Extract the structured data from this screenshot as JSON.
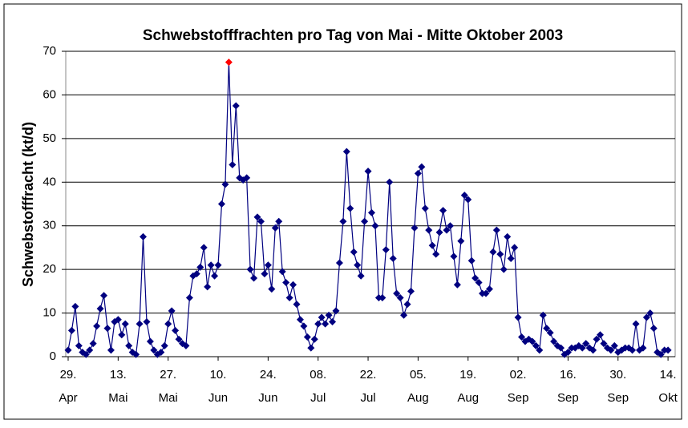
{
  "chart_data": {
    "type": "line",
    "title": "Schwebstofffrachten pro Tag von Mai - Mitte Oktober 2003",
    "y_label": "Schwebstofffracht (kt/d)",
    "color": "#000080",
    "max_marker_color": "#ff0000",
    "grid": true,
    "ylim": [
      0,
      70
    ],
    "yticks": [
      0,
      10,
      20,
      30,
      40,
      50,
      60,
      70
    ],
    "xlim": [
      "04-29",
      "10-16"
    ],
    "xticks": [
      {
        "value": "04-29",
        "label": "29. Apr"
      },
      {
        "value": "05-13",
        "label": "13. Mai"
      },
      {
        "value": "05-27",
        "label": "27. Mai"
      },
      {
        "value": "06-10",
        "label": "10. Jun"
      },
      {
        "value": "06-24",
        "label": "24. Jun"
      },
      {
        "value": "07-08",
        "label": "08. Jul"
      },
      {
        "value": "07-22",
        "label": "22. Jul"
      },
      {
        "value": "08-05",
        "label": "05. Aug"
      },
      {
        "value": "08-19",
        "label": "19. Aug"
      },
      {
        "value": "09-02",
        "label": "02. Sep"
      },
      {
        "value": "09-16",
        "label": "16. Sep"
      },
      {
        "value": "09-30",
        "label": "30. Sep"
      },
      {
        "value": "10-14",
        "label": "14. Okt"
      }
    ],
    "x": [
      "04-29",
      "04-30",
      "05-01",
      "05-02",
      "05-03",
      "05-04",
      "05-05",
      "05-06",
      "05-07",
      "05-08",
      "05-09",
      "05-10",
      "05-11",
      "05-12",
      "05-13",
      "05-14",
      "05-15",
      "05-16",
      "05-17",
      "05-18",
      "05-19",
      "05-20",
      "05-21",
      "05-22",
      "05-23",
      "05-24",
      "05-25",
      "05-26",
      "05-27",
      "05-28",
      "05-29",
      "05-30",
      "05-31",
      "06-01",
      "06-02",
      "06-03",
      "06-04",
      "06-05",
      "06-06",
      "06-07",
      "06-08",
      "06-09",
      "06-10",
      "06-11",
      "06-12",
      "06-13",
      "06-14",
      "06-15",
      "06-16",
      "06-17",
      "06-18",
      "06-19",
      "06-20",
      "06-21",
      "06-22",
      "06-23",
      "06-24",
      "06-25",
      "06-26",
      "06-27",
      "06-28",
      "06-29",
      "06-30",
      "07-01",
      "07-02",
      "07-03",
      "07-04",
      "07-05",
      "07-06",
      "07-07",
      "07-08",
      "07-09",
      "07-10",
      "07-11",
      "07-12",
      "07-13",
      "07-14",
      "07-15",
      "07-16",
      "07-17",
      "07-18",
      "07-19",
      "07-20",
      "07-21",
      "07-22",
      "07-23",
      "07-24",
      "07-25",
      "07-26",
      "07-27",
      "07-28",
      "07-29",
      "07-30",
      "07-31",
      "08-01",
      "08-02",
      "08-03",
      "08-04",
      "08-05",
      "08-06",
      "08-07",
      "08-08",
      "08-09",
      "08-10",
      "08-11",
      "08-12",
      "08-13",
      "08-14",
      "08-15",
      "08-16",
      "08-17",
      "08-18",
      "08-19",
      "08-20",
      "08-21",
      "08-22",
      "08-23",
      "08-24",
      "08-25",
      "08-26",
      "08-27",
      "08-28",
      "08-29",
      "08-30",
      "08-31",
      "09-01",
      "09-02",
      "09-03",
      "09-04",
      "09-05",
      "09-06",
      "09-07",
      "09-08",
      "09-09",
      "09-10",
      "09-11",
      "09-12",
      "09-13",
      "09-14",
      "09-15",
      "09-16",
      "09-17",
      "09-18",
      "09-19",
      "09-20",
      "09-21",
      "09-22",
      "09-23",
      "09-24",
      "09-25",
      "09-26",
      "09-27",
      "09-28",
      "09-29",
      "09-30",
      "10-01",
      "10-02",
      "10-03",
      "10-04",
      "10-05",
      "10-06",
      "10-07",
      "10-08",
      "10-09",
      "10-10",
      "10-11",
      "10-12",
      "10-13",
      "10-14"
    ],
    "values": [
      1.5,
      6,
      11.5,
      2.5,
      1,
      0.5,
      1.5,
      3,
      7,
      11,
      14,
      6.5,
      1.5,
      8,
      8.5,
      5,
      7.5,
      2.5,
      1,
      0.5,
      7.5,
      27.5,
      8,
      3.5,
      1.5,
      0.5,
      1,
      2.5,
      7.5,
      10.5,
      6,
      4,
      3,
      2.5,
      13.5,
      18.5,
      19,
      20.5,
      25,
      16,
      21,
      18.5,
      21,
      35,
      39.5,
      67.5,
      44,
      57.5,
      41,
      40.5,
      41,
      20,
      18,
      32,
      31,
      19,
      21,
      15.5,
      29.5,
      31,
      19.5,
      17,
      13.5,
      16.5,
      12,
      8.5,
      7,
      4.5,
      2,
      4,
      7.5,
      9,
      7.5,
      9.5,
      8,
      10.5,
      21.5,
      31,
      47,
      34,
      24,
      21,
      18.5,
      31,
      42.5,
      33,
      30,
      13.5,
      13.5,
      24.5,
      40,
      22.5,
      14.5,
      13.5,
      9.5,
      12,
      15,
      29.5,
      42,
      43.5,
      34,
      29,
      25.5,
      23.5,
      28.5,
      33.5,
      29,
      30,
      23,
      16.5,
      26.5,
      37,
      36,
      22,
      18,
      17,
      14.5,
      14.5,
      15.5,
      24,
      29,
      23.5,
      20,
      27.5,
      22.5,
      25,
      9,
      4.5,
      3.5,
      4,
      3.5,
      2.5,
      1.5,
      9.5,
      6.5,
      5.5,
      3.5,
      2.5,
      2,
      0.5,
      1,
      2,
      2,
      2.5,
      2,
      3,
      2,
      1.5,
      4,
      5,
      3,
      2,
      1.5,
      2.5,
      1,
      1.5,
      2,
      2,
      1.5,
      7.5,
      1.5,
      2,
      9,
      10,
      6.5,
      1,
      0.5,
      1.5,
      1.5
    ]
  }
}
